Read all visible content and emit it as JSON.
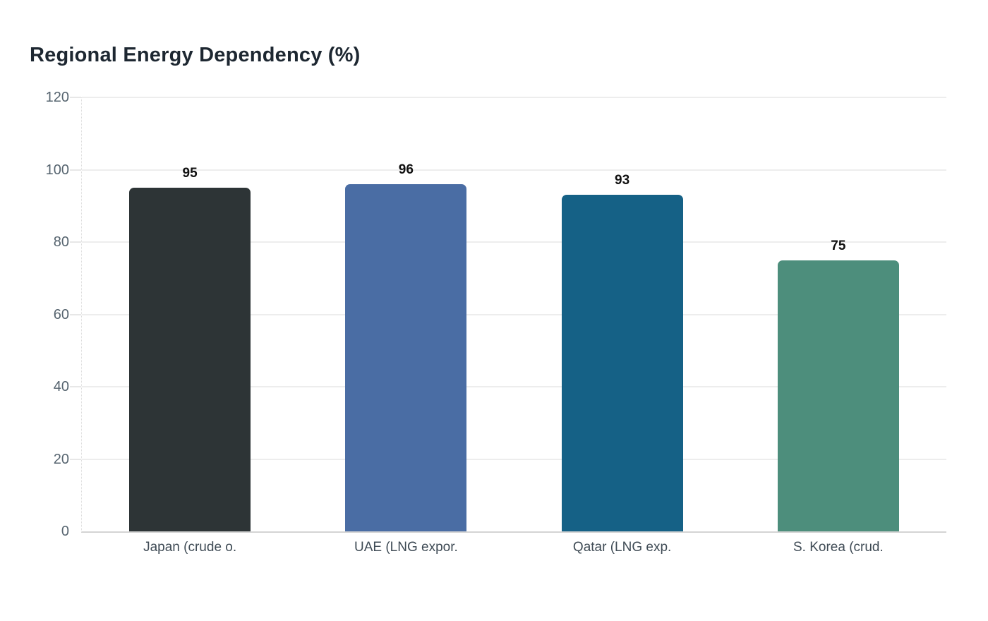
{
  "chart_data": {
    "type": "bar",
    "title": "Regional Energy Dependency (%)",
    "categories": [
      "Japan (crude o.",
      "UAE (LNG expor.",
      "Qatar (LNG exp.",
      "S. Korea (crud."
    ],
    "values": [
      95,
      96,
      93,
      75
    ],
    "value_labels": [
      "95",
      "96",
      "93",
      "75"
    ],
    "bar_colors": [
      "#2d3436",
      "#4a6da4",
      "#156186",
      "#4d8e7c"
    ],
    "ylim": [
      0,
      120
    ],
    "yticks": [
      0,
      20,
      40,
      60,
      80,
      100,
      120
    ],
    "xlabel": "",
    "ylabel": "",
    "grid": "horizontal",
    "legend": "none"
  },
  "colors": {
    "background": "#ffffff",
    "title_text": "#1d2731",
    "y_tick_text": "#56646f",
    "x_tick_text": "#3f4b55",
    "value_label_text": "#111111",
    "gridline": "#ededed",
    "baseline": "#d4d4d4",
    "axis_dotted": "#dcdcdc"
  }
}
